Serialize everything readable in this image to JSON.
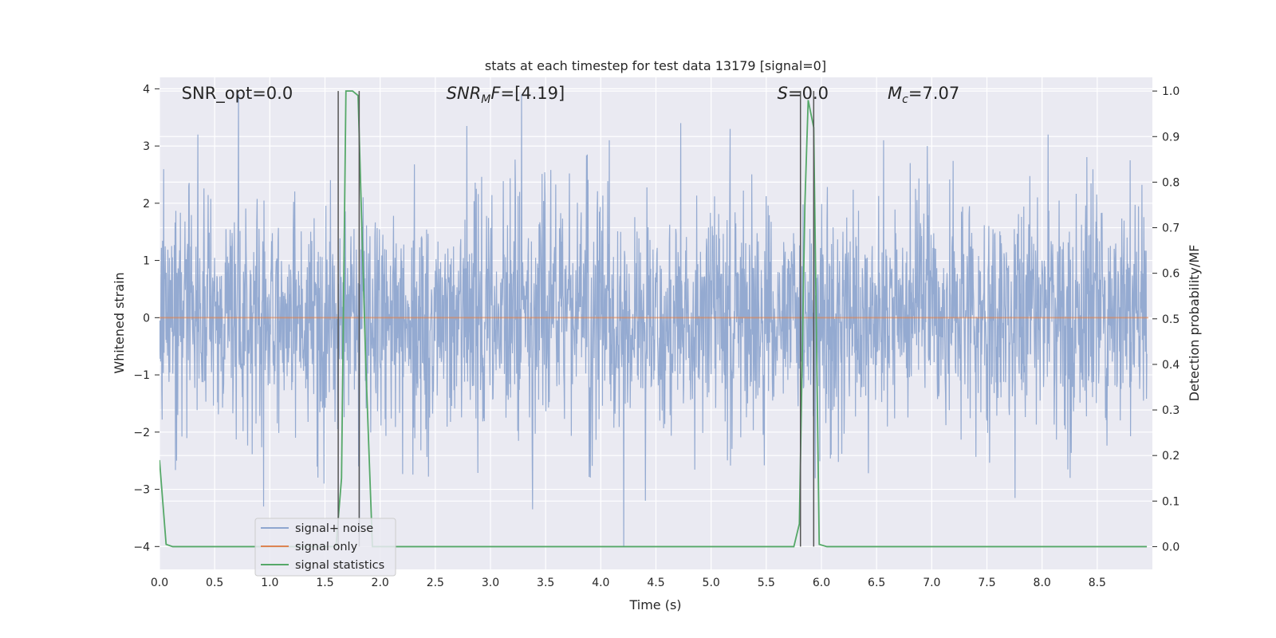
{
  "chart_data": {
    "type": "line",
    "title": "stats at each timestep for test data 13179 [signal=0]",
    "xlabel": "Time (s)",
    "ylabel": "Whitened strain",
    "y2label": "Detection probability/MF",
    "xlim": [
      0.0,
      9.0
    ],
    "ylim": [
      -4.4,
      4.2
    ],
    "y2lim": [
      -0.05,
      1.03
    ],
    "x_ticks": [
      "0.0",
      "0.5",
      "1.0",
      "1.5",
      "2.0",
      "2.5",
      "3.0",
      "3.5",
      "4.0",
      "4.5",
      "5.0",
      "5.5",
      "6.0",
      "6.5",
      "7.0",
      "7.5",
      "8.0",
      "8.5"
    ],
    "y_ticks": [
      "−4",
      "−3",
      "−2",
      "−1",
      "0",
      "1",
      "2",
      "3",
      "4"
    ],
    "y2_ticks": [
      "0.0",
      "0.1",
      "0.2",
      "0.3",
      "0.4",
      "0.5",
      "0.6",
      "0.7",
      "0.8",
      "0.9",
      "1.0"
    ],
    "grid": true,
    "legend_position": "lower-left",
    "annotations": [
      {
        "id": "snr_opt",
        "text": "SNR_opt=0.0",
        "x": 0.2
      },
      {
        "id": "snr_mf",
        "text": "SNR",
        "sub": "M",
        "suffix": "F=[4.19]",
        "x": 2.6
      },
      {
        "id": "s_val",
        "text": "S",
        "suffix": "=0.0",
        "x": 5.6
      },
      {
        "id": "mc_val",
        "text": "M",
        "sub": "c",
        "suffix": "=7.07",
        "x": 6.6
      }
    ],
    "series": [
      {
        "name": "signal+ noise",
        "color": "#8fa6cf",
        "kind": "noise",
        "envelope_typical": 1.6,
        "envelope_max": 4.0,
        "extreme_spikes": [
          [
            0.35,
            3.2
          ],
          [
            0.72,
            3.9
          ],
          [
            0.95,
            -3.3
          ],
          [
            1.5,
            -2.9
          ],
          [
            1.82,
            -4.0
          ],
          [
            2.8,
            3.35
          ],
          [
            3.3,
            3.9
          ],
          [
            3.4,
            -3.35
          ],
          [
            4.1,
            3.1
          ],
          [
            4.23,
            -4.0
          ],
          [
            4.43,
            -3.2
          ],
          [
            4.75,
            3.4
          ],
          [
            5.2,
            3.3
          ],
          [
            6.6,
            3.1
          ],
          [
            7.0,
            3.0
          ],
          [
            7.8,
            -3.15
          ],
          [
            8.1,
            3.2
          ],
          [
            8.3,
            -2.8
          ]
        ]
      },
      {
        "name": "signal only",
        "color": "#dd8452",
        "kind": "flat",
        "value": 0.0
      },
      {
        "name": "signal statistics",
        "color": "#55a868",
        "kind": "stats",
        "axis": "y2",
        "x": [
          0.0,
          0.06,
          0.12,
          1.6,
          1.65,
          1.69,
          1.75,
          1.8,
          1.87,
          1.93,
          5.75,
          5.8,
          5.85,
          5.88,
          5.93,
          5.98,
          6.05,
          8.95
        ],
        "y": [
          0.19,
          0.005,
          0.0,
          0.0,
          0.15,
          1.0,
          1.0,
          0.99,
          0.4,
          0.0,
          0.0,
          0.05,
          0.75,
          0.98,
          0.92,
          0.005,
          0.0,
          0.0
        ]
      }
    ],
    "vlines": [
      1.62,
      1.81,
      5.81,
      5.93
    ],
    "vline_color": "#555555"
  }
}
